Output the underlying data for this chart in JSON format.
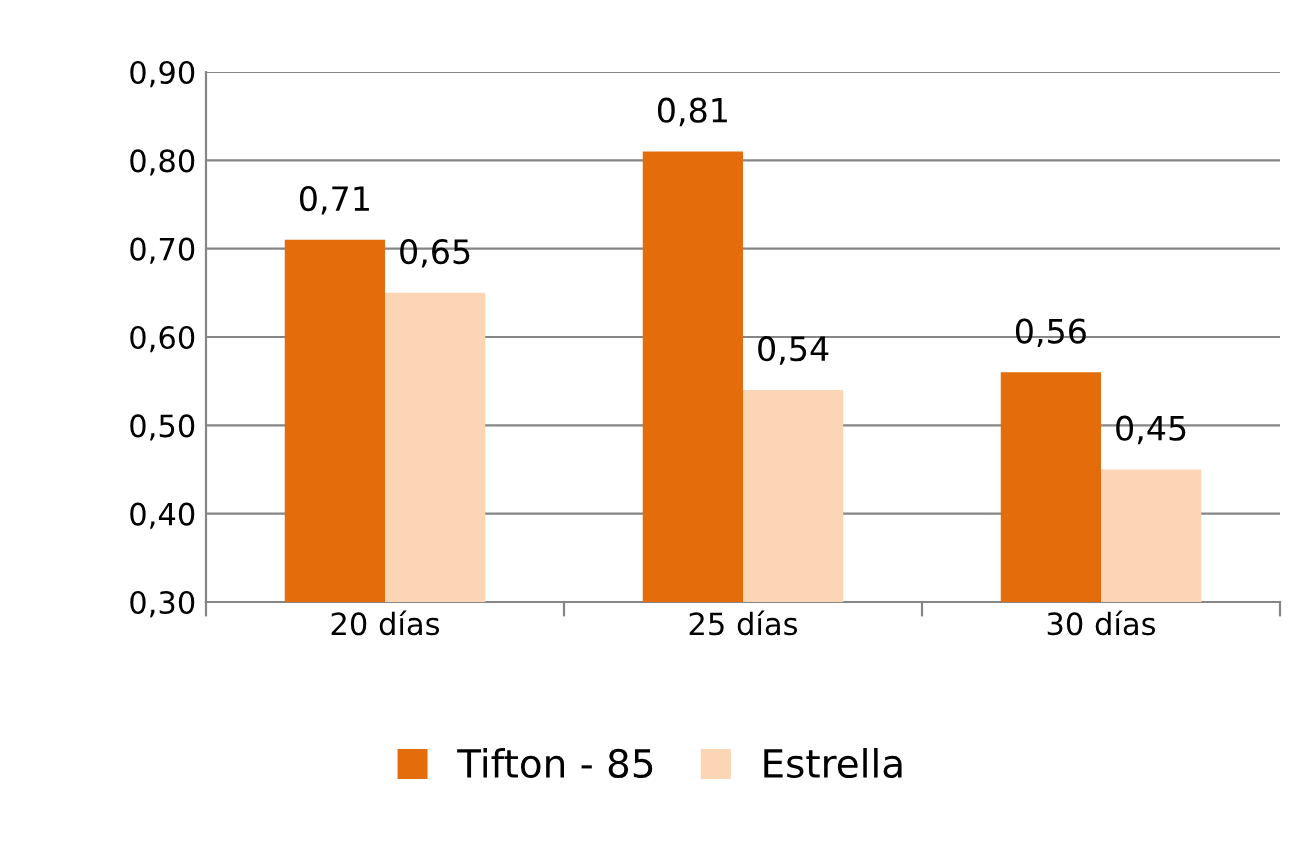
{
  "chart_data": {
    "type": "bar",
    "categories": [
      "20 días",
      "25 días",
      "30 días"
    ],
    "series": [
      {
        "name": "Tifton - 85",
        "color": "#e46c0a",
        "values": [
          0.71,
          0.81,
          0.56
        ],
        "value_labels": [
          "0,71",
          "0,81",
          "0,56"
        ]
      },
      {
        "name": "Estrella",
        "color": "#fcd5b5",
        "values": [
          0.65,
          0.54,
          0.45
        ],
        "value_labels": [
          "0,65",
          "0,54",
          "0,45"
        ]
      }
    ],
    "ylim": [
      0.3,
      0.9
    ],
    "yticks": [
      {
        "value": 0.3,
        "label": "0,30"
      },
      {
        "value": 0.4,
        "label": "0,40"
      },
      {
        "value": 0.5,
        "label": "0,50"
      },
      {
        "value": 0.6,
        "label": "0,60"
      },
      {
        "value": 0.7,
        "label": "0,70"
      },
      {
        "value": 0.8,
        "label": "0,80"
      },
      {
        "value": 0.9,
        "label": "0,90"
      }
    ],
    "grid": "y",
    "legend": "bottom"
  }
}
